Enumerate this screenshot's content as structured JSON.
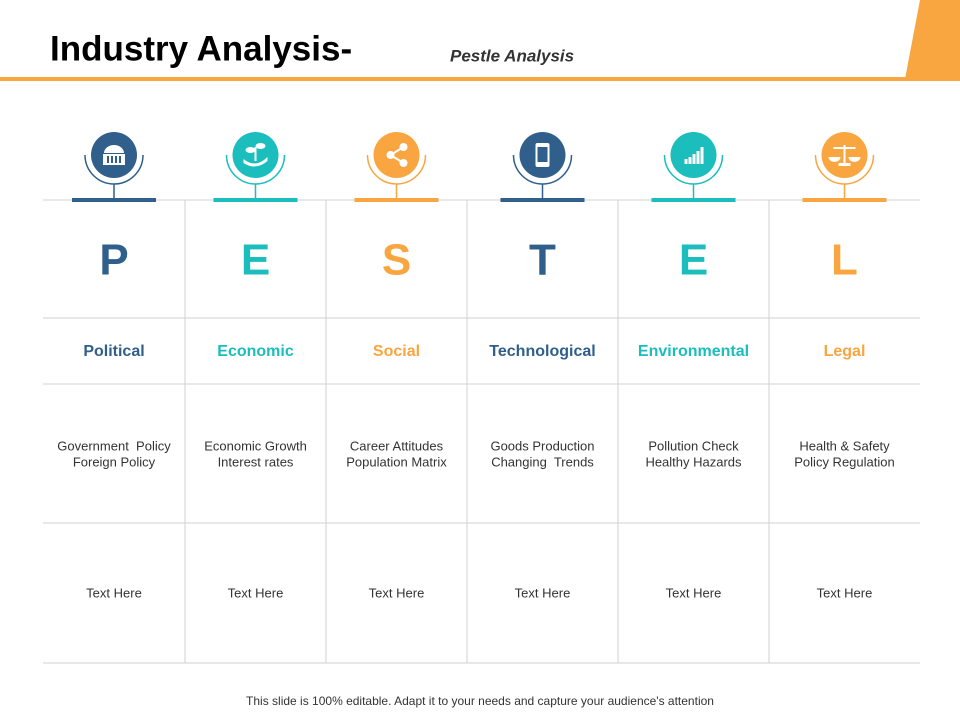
{
  "header": {
    "title": "Industry Analysis-",
    "subtitle": "Pestle Analysis"
  },
  "columns": [
    {
      "letter": "P",
      "name": "Political",
      "details": [
        "Government  Policy",
        "Foreign Policy"
      ],
      "text": "Text Here",
      "color": "#2f5f8a"
    },
    {
      "letter": "E",
      "name": "Economic",
      "details": [
        "Economic Growth",
        "Interest rates"
      ],
      "text": "Text Here",
      "color": "#1bbdbd"
    },
    {
      "letter": "S",
      "name": "Social",
      "details": [
        "Career Attitudes",
        "Population Matrix"
      ],
      "text": "Text Here",
      "color": "#f9a540"
    },
    {
      "letter": "T",
      "name": "Technological",
      "details": [
        "Goods Production",
        "Changing  Trends"
      ],
      "text": "Text Here",
      "color": "#2f5f8a"
    },
    {
      "letter": "E",
      "name": "Environmental",
      "details": [
        "Pollution Check",
        "Healthy Hazards"
      ],
      "text": "Text Here",
      "color": "#1bbdbd"
    },
    {
      "letter": "L",
      "name": "Legal",
      "details": [
        "Health & Safety",
        "Policy Regulation"
      ],
      "text": "Text Here",
      "color": "#f9a540"
    }
  ],
  "footer": "This slide is 100% editable. Adapt it to your needs and capture your audience's attention"
}
